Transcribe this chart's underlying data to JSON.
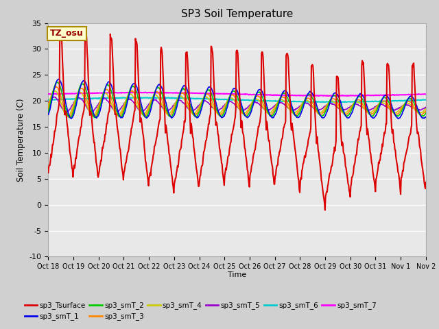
{
  "title": "SP3 Soil Temperature",
  "ylabel": "Soil Temperature (C)",
  "xlabel": "Time",
  "ylim": [
    -10,
    35
  ],
  "yticks": [
    -10,
    -5,
    0,
    5,
    10,
    15,
    20,
    25,
    30,
    35
  ],
  "x_labels": [
    "Oct 18",
    "Oct 19",
    "Oct 20",
    "Oct 21",
    "Oct 22",
    "Oct 23",
    "Oct 24",
    "Oct 25",
    "Oct 26",
    "Oct 27",
    "Oct 28",
    "Oct 29",
    "Oct 30",
    "Oct 31",
    "Nov 1",
    "Nov 2"
  ],
  "fig_bg_color": "#d0d0d0",
  "plot_bg_color": "#e8e8e8",
  "grid_color": "#ffffff",
  "line_colors": {
    "sp3_Tsurface": "#dd0000",
    "sp3_smT_1": "#0000ee",
    "sp3_smT_2": "#00cc00",
    "sp3_smT_3": "#ff8800",
    "sp3_smT_4": "#cccc00",
    "sp3_smT_5": "#9900cc",
    "sp3_smT_6": "#00cccc",
    "sp3_smT_7": "#ff00ff"
  },
  "tz_label": "TZ_osu",
  "n_days": 15
}
